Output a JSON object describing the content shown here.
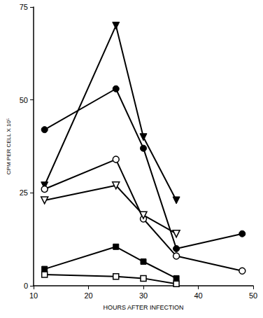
{
  "chart_data": {
    "type": "line",
    "x_label": "HOURS AFTER INFECTION",
    "y_label": "CPM PER CELL X 10⁵",
    "x": [
      12,
      25,
      30,
      36,
      48
    ],
    "series": [
      {
        "marker": "triangle_down",
        "values": [
          27,
          70,
          40,
          23,
          null
        ]
      },
      {
        "marker": "circle",
        "values": [
          42,
          53,
          37,
          10,
          14
        ]
      },
      {
        "marker": "circle_open",
        "values": [
          26,
          34,
          18,
          8,
          4
        ]
      },
      {
        "marker": "triangle_down_open",
        "values": [
          23,
          27,
          19,
          14,
          null
        ]
      },
      {
        "marker": "square",
        "values": [
          4.5,
          10.5,
          6.5,
          2,
          null
        ]
      },
      {
        "marker": "square_open",
        "values": [
          3,
          2.5,
          2,
          0.5,
          null
        ]
      }
    ],
    "color": "#000000",
    "xlim": [
      10,
      50
    ],
    "xticks": [
      10,
      20,
      30,
      40,
      50
    ],
    "ylim": [
      0,
      75
    ],
    "yticks": [
      0,
      25,
      50,
      75
    ],
    "grid": false
  }
}
